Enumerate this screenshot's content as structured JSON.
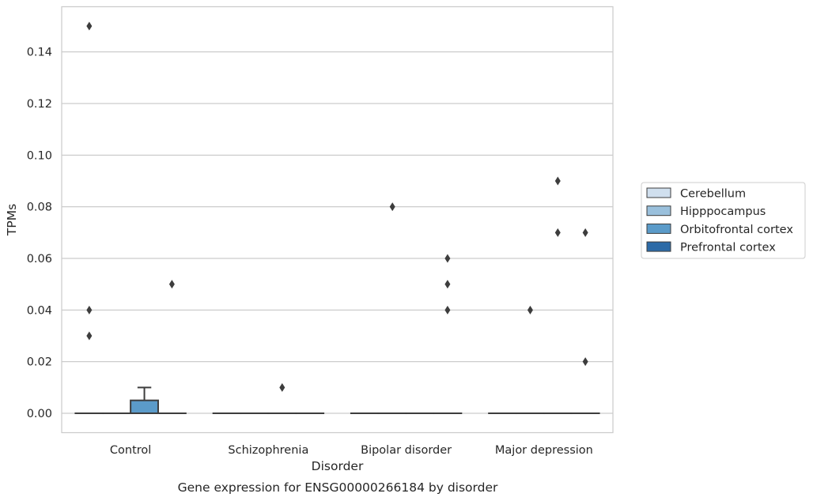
{
  "chart_data": {
    "type": "box",
    "xlabel": "Disorder",
    "ylabel": "TPMs",
    "caption": "Gene expression for ENSG00000266184 by disorder",
    "categories": [
      "Control",
      "Schizophrenia",
      "Bipolar disorder",
      "Major depression"
    ],
    "yticks": [
      "0.00",
      "0.02",
      "0.04",
      "0.06",
      "0.08",
      "0.10",
      "0.12",
      "0.14"
    ],
    "ytick_values": [
      0.0,
      0.02,
      0.04,
      0.06,
      0.08,
      0.1,
      0.12,
      0.14
    ],
    "ylim": [
      -0.0075,
      0.1575
    ],
    "grid": "horizontal",
    "legend_position": "right",
    "series": [
      {
        "name": "Cerebellum",
        "color": "#d0dfee",
        "boxes": [
          {
            "category": "Control",
            "q1": 0,
            "median": 0,
            "q3": 0,
            "whisker_low": 0,
            "whisker_high": 0,
            "outliers": [
              0.03,
              0.04,
              0.15
            ]
          },
          {
            "category": "Schizophrenia",
            "q1": 0,
            "median": 0,
            "q3": 0,
            "whisker_low": 0,
            "whisker_high": 0,
            "outliers": []
          },
          {
            "category": "Bipolar disorder",
            "q1": 0,
            "median": 0,
            "q3": 0,
            "whisker_low": 0,
            "whisker_high": 0,
            "outliers": []
          },
          {
            "category": "Major depression",
            "q1": 0,
            "median": 0,
            "q3": 0,
            "whisker_low": 0,
            "whisker_high": 0,
            "outliers": []
          }
        ]
      },
      {
        "name": "Hipppocampus",
        "color": "#9ac0dc",
        "boxes": [
          {
            "category": "Control",
            "q1": 0,
            "median": 0,
            "q3": 0,
            "whisker_low": 0,
            "whisker_high": 0,
            "outliers": []
          },
          {
            "category": "Schizophrenia",
            "q1": 0,
            "median": 0,
            "q3": 0,
            "whisker_low": 0,
            "whisker_high": 0,
            "outliers": []
          },
          {
            "category": "Bipolar disorder",
            "q1": 0,
            "median": 0,
            "q3": 0,
            "whisker_low": 0,
            "whisker_high": 0,
            "outliers": [
              0.08
            ]
          },
          {
            "category": "Major depression",
            "q1": 0,
            "median": 0,
            "q3": 0,
            "whisker_low": 0,
            "whisker_high": 0,
            "outliers": [
              0.04
            ]
          }
        ]
      },
      {
        "name": "Orbitofrontal cortex",
        "color": "#5b9bc9",
        "boxes": [
          {
            "category": "Control",
            "q1": 0,
            "median": 0,
            "q3": 0.005,
            "whisker_low": 0,
            "whisker_high": 0.01,
            "outliers": []
          },
          {
            "category": "Schizophrenia",
            "q1": 0,
            "median": 0,
            "q3": 0,
            "whisker_low": 0,
            "whisker_high": 0,
            "outliers": [
              0.01
            ]
          },
          {
            "category": "Bipolar disorder",
            "q1": 0,
            "median": 0,
            "q3": 0,
            "whisker_low": 0,
            "whisker_high": 0,
            "outliers": []
          },
          {
            "category": "Major depression",
            "q1": 0,
            "median": 0,
            "q3": 0,
            "whisker_low": 0,
            "whisker_high": 0,
            "outliers": [
              0.07,
              0.09
            ]
          }
        ]
      },
      {
        "name": "Prefrontal cortex",
        "color": "#2c6aa7",
        "boxes": [
          {
            "category": "Control",
            "q1": 0,
            "median": 0,
            "q3": 0,
            "whisker_low": 0,
            "whisker_high": 0,
            "outliers": [
              0.05
            ]
          },
          {
            "category": "Schizophrenia",
            "q1": 0,
            "median": 0,
            "q3": 0,
            "whisker_low": 0,
            "whisker_high": 0,
            "outliers": []
          },
          {
            "category": "Bipolar disorder",
            "q1": 0,
            "median": 0,
            "q3": 0,
            "whisker_low": 0,
            "whisker_high": 0,
            "outliers": [
              0.04,
              0.05,
              0.06
            ]
          },
          {
            "category": "Major depression",
            "q1": 0,
            "median": 0,
            "q3": 0,
            "whisker_low": 0,
            "whisker_high": 0,
            "outliers": [
              0.02,
              0.07
            ]
          }
        ]
      }
    ]
  }
}
